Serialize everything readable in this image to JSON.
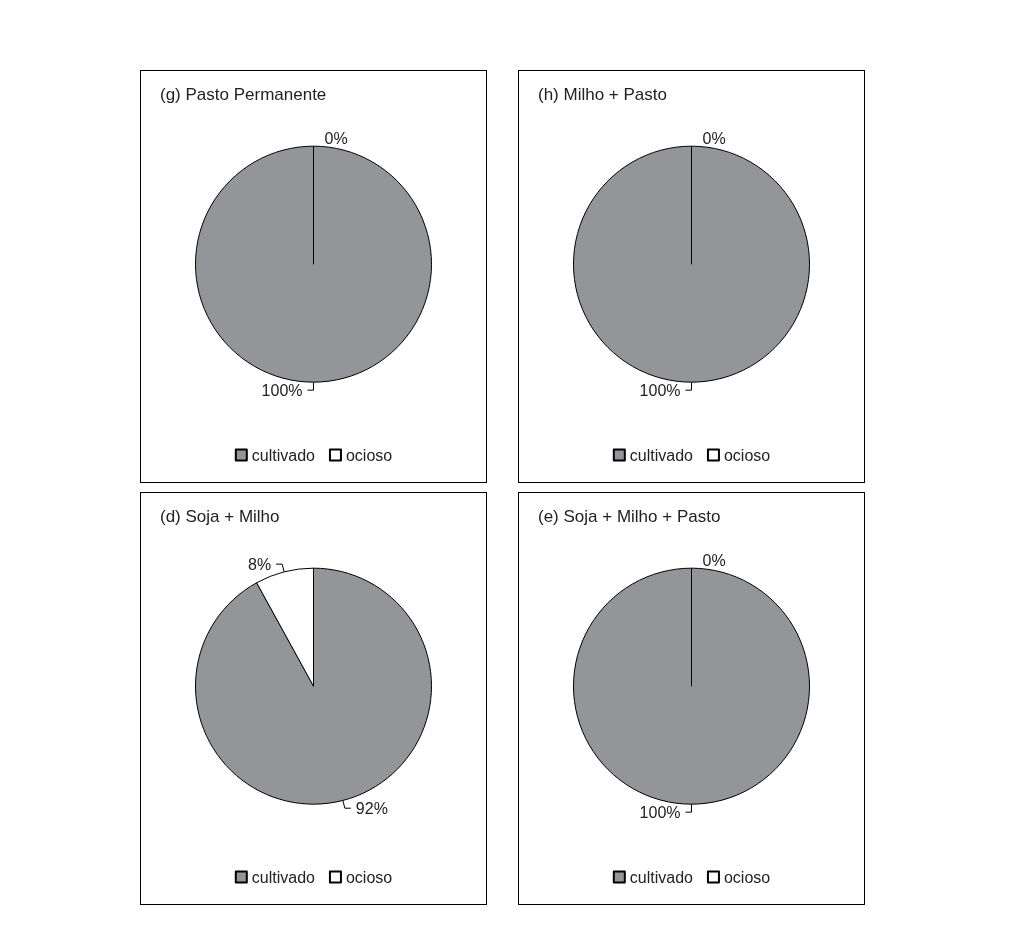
{
  "chart_data": [
    {
      "type": "pie",
      "title": "(g) Pasto Permanente",
      "categories": [
        "cultivado",
        "ocioso"
      ],
      "values": [
        100,
        0
      ],
      "colors": [
        "#939598",
        "#ffffff"
      ],
      "value_labels": [
        "100%",
        "0%"
      ],
      "legend": "bottom"
    },
    {
      "type": "pie",
      "title": "(h) Milho + Pasto",
      "categories": [
        "cultivado",
        "ocioso"
      ],
      "values": [
        100,
        0
      ],
      "colors": [
        "#939598",
        "#ffffff"
      ],
      "value_labels": [
        "100%",
        "0%"
      ],
      "legend": "bottom"
    },
    {
      "type": "pie",
      "title": "(d) Soja + Milho",
      "categories": [
        "cultivado",
        "ocioso"
      ],
      "values": [
        92,
        8
      ],
      "colors": [
        "#939598",
        "#ffffff"
      ],
      "value_labels": [
        "92%",
        "8%"
      ],
      "legend": "bottom"
    },
    {
      "type": "pie",
      "title": "(e) Soja + Milho + Pasto",
      "categories": [
        "cultivado",
        "ocioso"
      ],
      "values": [
        100,
        0
      ],
      "colors": [
        "#939598",
        "#ffffff"
      ],
      "value_labels": [
        "100%",
        "0%"
      ],
      "legend": "bottom"
    }
  ]
}
